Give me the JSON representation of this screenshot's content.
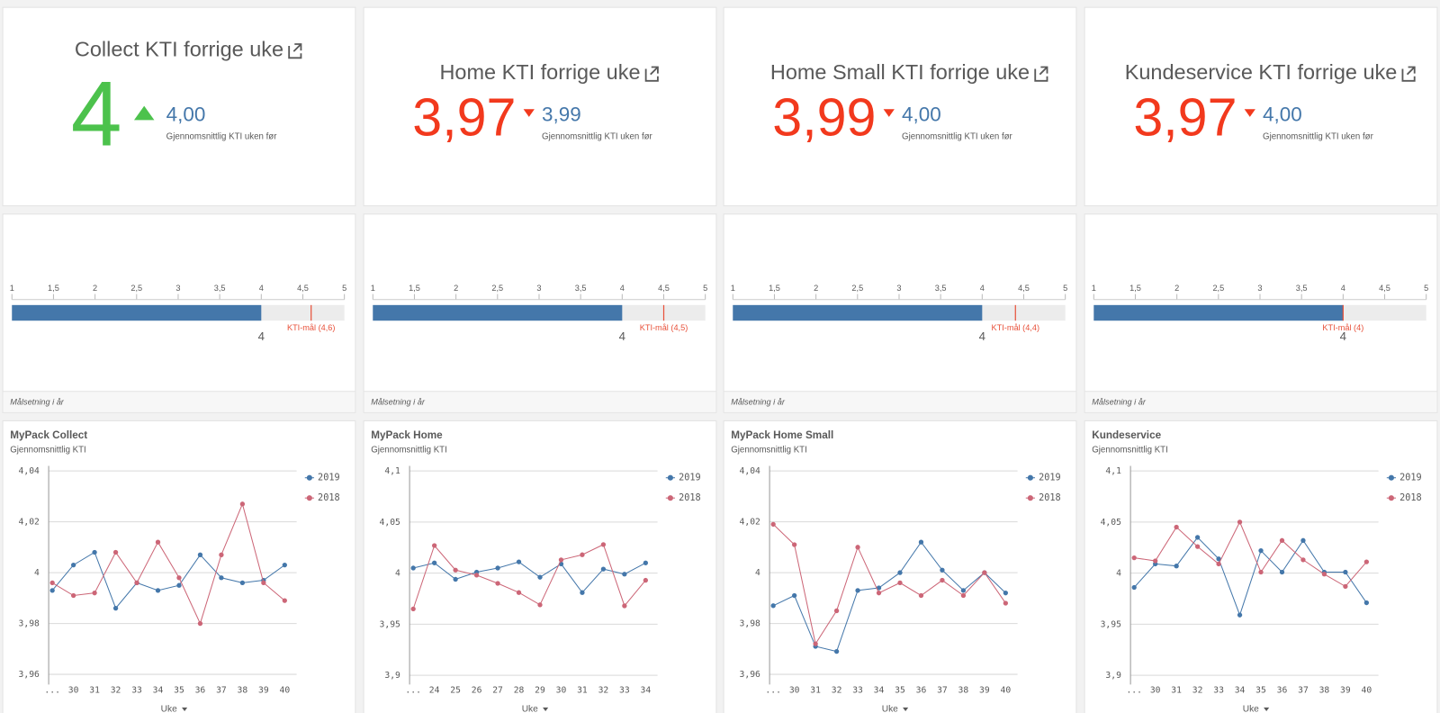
{
  "kpis": [
    {
      "title": "Collect KTI forrige uke",
      "value": "4",
      "compare": "4,00",
      "compare_label": "Gjennomsnittlig KTI uken før",
      "trend": "up",
      "color": "#4cc24c"
    },
    {
      "title": "Home KTI forrige uke",
      "value": "3,97",
      "compare": "3,99",
      "compare_label": "Gjennomsnittlig KTI uken før",
      "trend": "down",
      "color": "#f2391d"
    },
    {
      "title": "Home Small KTI forrige uke",
      "value": "3,99",
      "compare": "4,00",
      "compare_label": "Gjennomsnittlig KTI uken før",
      "trend": "down",
      "color": "#f2391d"
    },
    {
      "title": "Kundeservice KTI forrige uke",
      "value": "3,97",
      "compare": "4,00",
      "compare_label": "Gjennomsnittlig KTI uken før",
      "trend": "down",
      "color": "#f2391d"
    }
  ],
  "chart_data": [
    {
      "type": "bullet",
      "xlim": [
        1,
        5
      ],
      "xticks": [
        1,
        {
          "value": 1.5,
          "label": "1,5"
        },
        2,
        {
          "value": 2.5,
          "label": "2,5"
        },
        3,
        {
          "value": 3.5,
          "label": "3,5"
        },
        4,
        {
          "value": 4.5,
          "label": "4,5"
        },
        5
      ],
      "value": 4,
      "color": "#4477aa",
      "target": 4.6,
      "target_label": "KTI-mål (4,6)",
      "target_color": "#e8513a",
      "footer": "Målsetning i år"
    },
    {
      "type": "bullet",
      "xlim": [
        1,
        5
      ],
      "xticks": [
        1,
        {
          "value": 1.5,
          "label": "1,5"
        },
        2,
        {
          "value": 2.5,
          "label": "2,5"
        },
        3,
        {
          "value": 3.5,
          "label": "3,5"
        },
        4,
        {
          "value": 4.5,
          "label": "4,5"
        },
        5
      ],
      "value": 4,
      "color": "#4477aa",
      "target": 4.5,
      "target_label": "KTI-mål (4,5)",
      "target_color": "#e8513a",
      "footer": "Målsetning i år"
    },
    {
      "type": "bullet",
      "xlim": [
        1,
        5
      ],
      "xticks": [
        1,
        {
          "value": 1.5,
          "label": "1,5"
        },
        2,
        {
          "value": 2.5,
          "label": "2,5"
        },
        3,
        {
          "value": 3.5,
          "label": "3,5"
        },
        4,
        {
          "value": 4.5,
          "label": "4,5"
        },
        5
      ],
      "value": 4,
      "color": "#4477aa",
      "target": 4.4,
      "target_label": "KTI-mål (4,4)",
      "target_color": "#e8513a",
      "footer": "Målsetning i år"
    },
    {
      "type": "bullet",
      "xlim": [
        1,
        5
      ],
      "xticks": [
        1,
        {
          "value": 1.5,
          "label": "1,5"
        },
        2,
        {
          "value": 2.5,
          "label": "2,5"
        },
        3,
        {
          "value": 3.5,
          "label": "3,5"
        },
        4,
        {
          "value": 4.5,
          "label": "4,5"
        },
        5
      ],
      "value": 4,
      "color": "#4477aa",
      "target": 4,
      "target_label": "KTI-mål (4)",
      "target_color": "#e8513a",
      "footer": "Målsetning i år"
    },
    {
      "type": "line",
      "title": "MyPack Collect",
      "subtitle": "Gjennomsnittlig KTI",
      "xlabel": "Uke",
      "categories": [
        "...",
        "30",
        "31",
        "32",
        "33",
        "34",
        "35",
        "36",
        "37",
        "38",
        "39",
        "40"
      ],
      "ylim": [
        3.956,
        4.042
      ],
      "yticks": [
        {
          "value": 4.04,
          "label": "4,04"
        },
        {
          "value": 4.02,
          "label": "4,02"
        },
        4,
        {
          "value": 3.98,
          "label": "3,98"
        },
        {
          "value": 3.96,
          "label": "3,96"
        }
      ],
      "grid": true,
      "series": [
        {
          "name": "2019",
          "color": "#4477aa",
          "values": [
            3.993,
            4.003,
            4.008,
            3.986,
            3.996,
            3.993,
            3.995,
            4.007,
            3.998,
            3.996,
            3.997,
            4.003
          ]
        },
        {
          "name": "2018",
          "color": "#cc6677",
          "values": [
            3.996,
            3.991,
            3.992,
            4.008,
            3.996,
            4.012,
            3.998,
            3.98,
            4.007,
            4.027,
            3.996,
            3.989
          ]
        }
      ]
    },
    {
      "type": "line",
      "title": "MyPack Home",
      "subtitle": "Gjennomsnittlig KTI",
      "xlabel": "Uke",
      "categories": [
        "...",
        "24",
        "25",
        "26",
        "27",
        "28",
        "29",
        "30",
        "31",
        "32",
        "33",
        "34"
      ],
      "ylim": [
        3.891,
        4.105
      ],
      "yticks": [
        {
          "value": 4.1,
          "label": "4,1"
        },
        {
          "value": 4.05,
          "label": "4,05"
        },
        4,
        {
          "value": 3.95,
          "label": "3,95"
        },
        {
          "value": 3.9,
          "label": "3,9"
        }
      ],
      "grid": true,
      "series": [
        {
          "name": "2019",
          "color": "#4477aa",
          "values": [
            4.005,
            4.01,
            3.994,
            4.001,
            4.005,
            4.011,
            3.996,
            4.009,
            3.981,
            4.004,
            3.999,
            4.01
          ]
        },
        {
          "name": "2018",
          "color": "#cc6677",
          "values": [
            3.965,
            4.027,
            4.003,
            3.998,
            3.99,
            3.981,
            3.969,
            4.013,
            4.018,
            4.028,
            3.968,
            3.993
          ]
        }
      ]
    },
    {
      "type": "line",
      "title": "MyPack Home Small",
      "subtitle": "Gjennomsnittlig KTI",
      "xlabel": "Uke",
      "categories": [
        "...",
        "30",
        "31",
        "32",
        "33",
        "34",
        "35",
        "36",
        "37",
        "38",
        "39",
        "40"
      ],
      "ylim": [
        3.956,
        4.042
      ],
      "yticks": [
        {
          "value": 4.04,
          "label": "4,04"
        },
        {
          "value": 4.02,
          "label": "4,02"
        },
        4,
        {
          "value": 3.98,
          "label": "3,98"
        },
        {
          "value": 3.96,
          "label": "3,96"
        }
      ],
      "grid": true,
      "series": [
        {
          "name": "2019",
          "color": "#4477aa",
          "values": [
            3.987,
            3.991,
            3.971,
            3.969,
            3.993,
            3.994,
            4.0,
            4.012,
            4.001,
            3.993,
            4.0,
            3.992
          ]
        },
        {
          "name": "2018",
          "color": "#cc6677",
          "values": [
            4.019,
            4.011,
            3.972,
            3.985,
            4.01,
            3.992,
            3.996,
            3.991,
            3.997,
            3.991,
            4.0,
            3.988
          ]
        }
      ]
    },
    {
      "type": "line",
      "title": "Kundeservice",
      "subtitle": "Gjennomsnittlig KTI",
      "xlabel": "Uke",
      "categories": [
        "...",
        "30",
        "31",
        "32",
        "33",
        "34",
        "35",
        "36",
        "37",
        "38",
        "39",
        "40"
      ],
      "ylim": [
        3.891,
        4.105
      ],
      "yticks": [
        {
          "value": 4.1,
          "label": "4,1"
        },
        {
          "value": 4.05,
          "label": "4,05"
        },
        4,
        {
          "value": 3.95,
          "label": "3,95"
        },
        {
          "value": 3.9,
          "label": "3,9"
        }
      ],
      "grid": true,
      "series": [
        {
          "name": "2019",
          "color": "#4477aa",
          "values": [
            3.986,
            4.009,
            4.007,
            4.035,
            4.014,
            3.959,
            4.022,
            4.001,
            4.032,
            4.001,
            4.001,
            3.971
          ]
        },
        {
          "name": "2018",
          "color": "#cc6677",
          "values": [
            4.015,
            4.012,
            4.045,
            4.026,
            4.009,
            4.05,
            4.001,
            4.032,
            4.013,
            3.999,
            3.987,
            4.011
          ]
        }
      ]
    }
  ]
}
